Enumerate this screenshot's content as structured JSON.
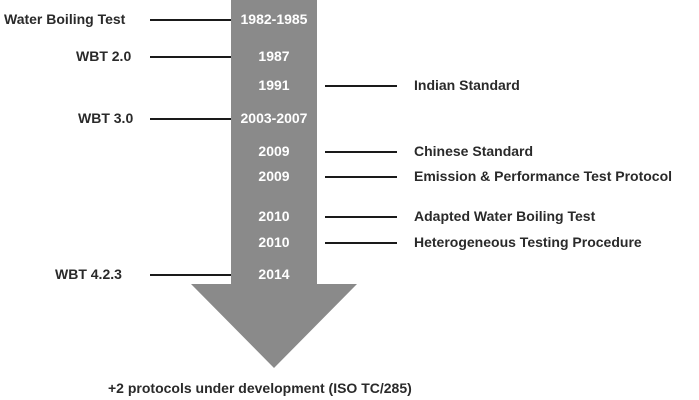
{
  "timeline": {
    "arrow_color": "#8a8a8a",
    "entries": [
      {
        "year": "1982-1985",
        "left_label": "Water Boiling Test",
        "right_label": ""
      },
      {
        "year": "1987",
        "left_label": "WBT 2.0",
        "right_label": ""
      },
      {
        "year": "1991",
        "left_label": "",
        "right_label": "Indian Standard"
      },
      {
        "year": "2003-2007",
        "left_label": "WBT 3.0",
        "right_label": ""
      },
      {
        "year": "2009",
        "left_label": "",
        "right_label": "Chinese Standard"
      },
      {
        "year": "2009",
        "left_label": "",
        "right_label": "Emission & Performance Test Protocol"
      },
      {
        "year": "2010",
        "left_label": "",
        "right_label": "Adapted Water Boiling Test"
      },
      {
        "year": "2010",
        "left_label": "",
        "right_label": "Heterogeneous Testing Procedure"
      },
      {
        "year": "2014",
        "left_label": "WBT 4.2.3",
        "right_label": ""
      }
    ],
    "footer": "+2 protocols under development (ISO TC/285)"
  }
}
